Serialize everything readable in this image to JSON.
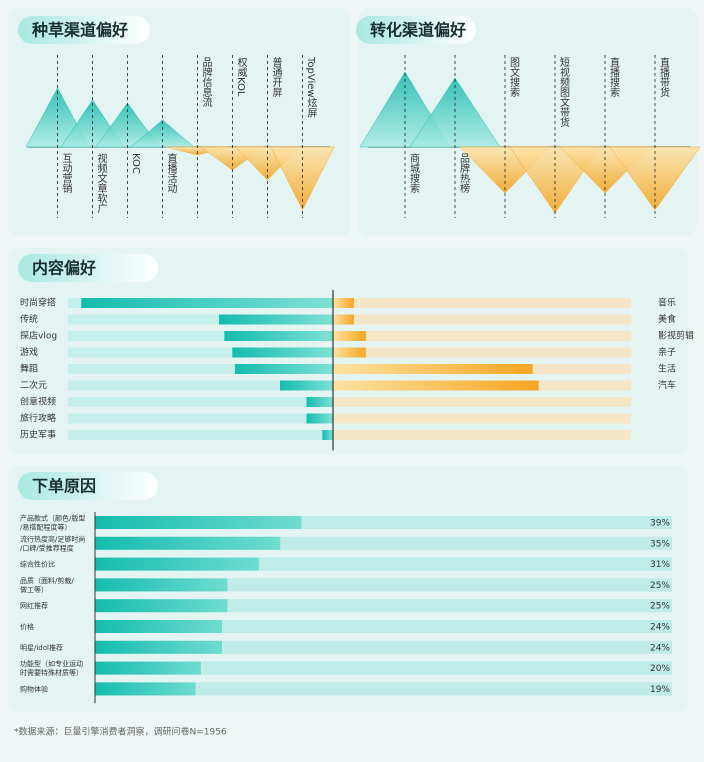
{
  "chart_data": [
    {
      "type": "peak",
      "title": "种草渠道偏好",
      "categories": [
        "互动营销",
        "视频文章软广",
        "KOC",
        "直播活动",
        "品牌信息流",
        "权威KOL",
        "普通开屏",
        "TopView炫屏"
      ],
      "values": [
        59,
        47,
        44,
        27,
        -8,
        -23,
        -33,
        -63
      ],
      "colors": {
        "up": "#1fc2b5",
        "down": "#f5a623"
      }
    },
    {
      "type": "peak",
      "title": "转化渠道偏好",
      "categories": [
        "商城搜索",
        "品牌热榜",
        "图文搜索",
        "短视频图文带货",
        "直播搜索",
        "直播带货"
      ],
      "values": [
        75,
        69,
        -46,
        -66,
        -46,
        -63
      ],
      "colors": {
        "up": "#1fc2b5",
        "down": "#f5a623"
      }
    },
    {
      "type": "butterfly",
      "title": "内容偏好",
      "left_categories": [
        "时尚穿搭",
        "传统",
        "探店vlog",
        "游戏",
        "舞蹈",
        "二次元",
        "创意视频",
        "旅行攻略",
        "历史军事"
      ],
      "left_values": [
        95,
        43,
        41,
        38,
        37,
        20,
        10,
        10,
        4
      ],
      "right_categories": [
        "音乐",
        "美食",
        "影视剪辑",
        "亲子",
        "生活",
        "汽车"
      ],
      "right_values": [
        7,
        7,
        11,
        11,
        67,
        69
      ],
      "colors": {
        "left": "#1fc2b5",
        "right": "#f5a623"
      }
    },
    {
      "type": "hbar",
      "title": "下单原因",
      "categories": [
        [
          "产品款式（颜色/版型",
          "/易搭配程度等）"
        ],
        [
          "流行热度高/足够时尚",
          "/口碑/受推荐程度"
        ],
        [
          "综合性价比"
        ],
        [
          "品质（面料/剪裁/",
          "做工等）"
        ],
        [
          "网红推荐"
        ],
        [
          "价格"
        ],
        [
          "明星/idol推荐"
        ],
        [
          "功能型（如专业运动",
          "时需要特殊材质等）"
        ],
        [
          "购物体验"
        ]
      ],
      "values": [
        39,
        35,
        31,
        25,
        25,
        24,
        24,
        20,
        19
      ],
      "value_labels": [
        "39%",
        "35%",
        "31%",
        "25%",
        "25%",
        "24%",
        "24%",
        "20%",
        "19%"
      ],
      "xlim": [
        0,
        109
      ],
      "color": "#1fc2b5"
    }
  ],
  "footnote": "*数据来源：巨量引擎消费者洞察，调研问卷N=1956"
}
